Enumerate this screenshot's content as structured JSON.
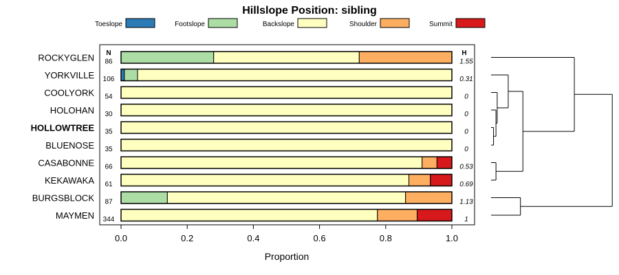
{
  "chart_data": {
    "type": "bar",
    "orientation": "horizontal",
    "stacked": true,
    "title": "Hillslope Position: sibling",
    "xlabel": "Proportion",
    "ylabel": "",
    "xlim": [
      0,
      1
    ],
    "xticks": [
      "0.0",
      "0.2",
      "0.4",
      "0.6",
      "0.8",
      "1.0"
    ],
    "legend_position": "top",
    "n_header": "N",
    "h_header": "H",
    "categories": [
      "ROCKYGLEN",
      "YORKVILLE",
      "COOLYORK",
      "HOLOHAN",
      "HOLLOWTREE",
      "BLUENOSE",
      "CASABONNE",
      "KEKAWAKA",
      "BURGSBLOCK",
      "MAYMEN"
    ],
    "highlighted_category": "HOLLOWTREE",
    "n": [
      "86",
      "106",
      "54",
      "30",
      "35",
      "35",
      "66",
      "61",
      "87",
      "344"
    ],
    "h": [
      "1.55",
      "0.31",
      "0",
      "0",
      "0",
      "0",
      "0.53",
      "0.69",
      "1.13",
      "1"
    ],
    "series": [
      {
        "name": "Toeslope",
        "color": "#2C7BB6",
        "values": [
          0,
          0.01,
          0,
          0,
          0,
          0,
          0,
          0,
          0,
          0
        ]
      },
      {
        "name": "Footslope",
        "color": "#ABDDA4",
        "values": [
          0.28,
          0.04,
          0,
          0,
          0,
          0,
          0,
          0,
          0.14,
          0
        ]
      },
      {
        "name": "Backslope",
        "color": "#FFFFBF",
        "values": [
          0.44,
          0.95,
          1,
          1,
          1,
          1,
          0.91,
          0.87,
          0.72,
          0.775
        ]
      },
      {
        "name": "Shoulder",
        "color": "#FDAE61",
        "values": [
          0.28,
          0,
          0,
          0,
          0,
          0,
          0.045,
          0.065,
          0.14,
          0.12
        ]
      },
      {
        "name": "Summit",
        "color": "#D7191C",
        "values": [
          0,
          0,
          0,
          0,
          0,
          0,
          0.045,
          0.065,
          0,
          0.105
        ]
      }
    ],
    "dendrogram": {
      "leaf_order": [
        "ROCKYGLEN",
        "YORKVILLE",
        "COOLYORK",
        "HOLOHAN",
        "HOLLOWTREE",
        "BLUENOSE",
        "CASABONNE",
        "KEKAWAKA",
        "BURGSBLOCK",
        "MAYMEN"
      ],
      "merges": [
        {
          "left": "HOLLOWTREE",
          "right": "BLUENOSE",
          "height": 0.02
        },
        {
          "left": "HOLOHAN",
          "right": "m0",
          "height": 0.04
        },
        {
          "left": "COOLYORK",
          "right": "m1",
          "height": 0.05
        },
        {
          "left": "CASABONNE",
          "right": "KEKAWAKA",
          "height": 0.04
        },
        {
          "left": "YORKVILLE",
          "right": "m2",
          "height": 0.14
        },
        {
          "left": "m4",
          "right": "m3",
          "height": 0.26
        },
        {
          "left": "BURGSBLOCK",
          "right": "MAYMEN",
          "height": 0.24
        },
        {
          "left": "ROCKYGLEN",
          "right": "m5",
          "height": 0.68
        },
        {
          "left": "m7",
          "right": "m6",
          "height": 0.99
        }
      ]
    }
  }
}
